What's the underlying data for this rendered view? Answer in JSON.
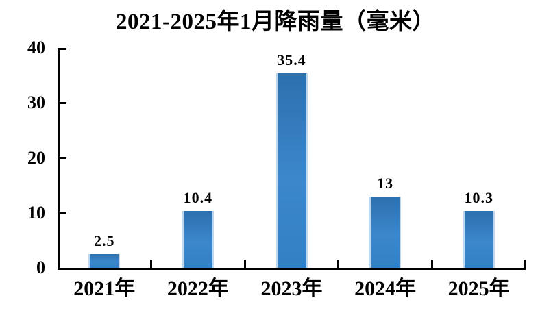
{
  "chart_data": {
    "type": "bar",
    "title": "2021-2025年1月降雨量（毫米）",
    "categories": [
      "2021年",
      "2022年",
      "2023年",
      "2024年",
      "2025年"
    ],
    "values": [
      2.5,
      10.4,
      35.4,
      13,
      10.3
    ],
    "data_labels": [
      "2.5",
      "10.4",
      "35.4",
      "13",
      "10.3"
    ],
    "y_ticks": [
      0,
      10,
      20,
      30,
      40
    ],
    "ylim": [
      0,
      40
    ],
    "xlabel": "",
    "ylabel": "",
    "grid": false,
    "legend": false,
    "colors": {
      "bar": "#2E75BA",
      "bar_highlight": "#3C87CC",
      "bar_edge_light": "#D7E8F7",
      "axis": "#000000",
      "text": "#000000",
      "background": "#FFFFFF"
    }
  }
}
